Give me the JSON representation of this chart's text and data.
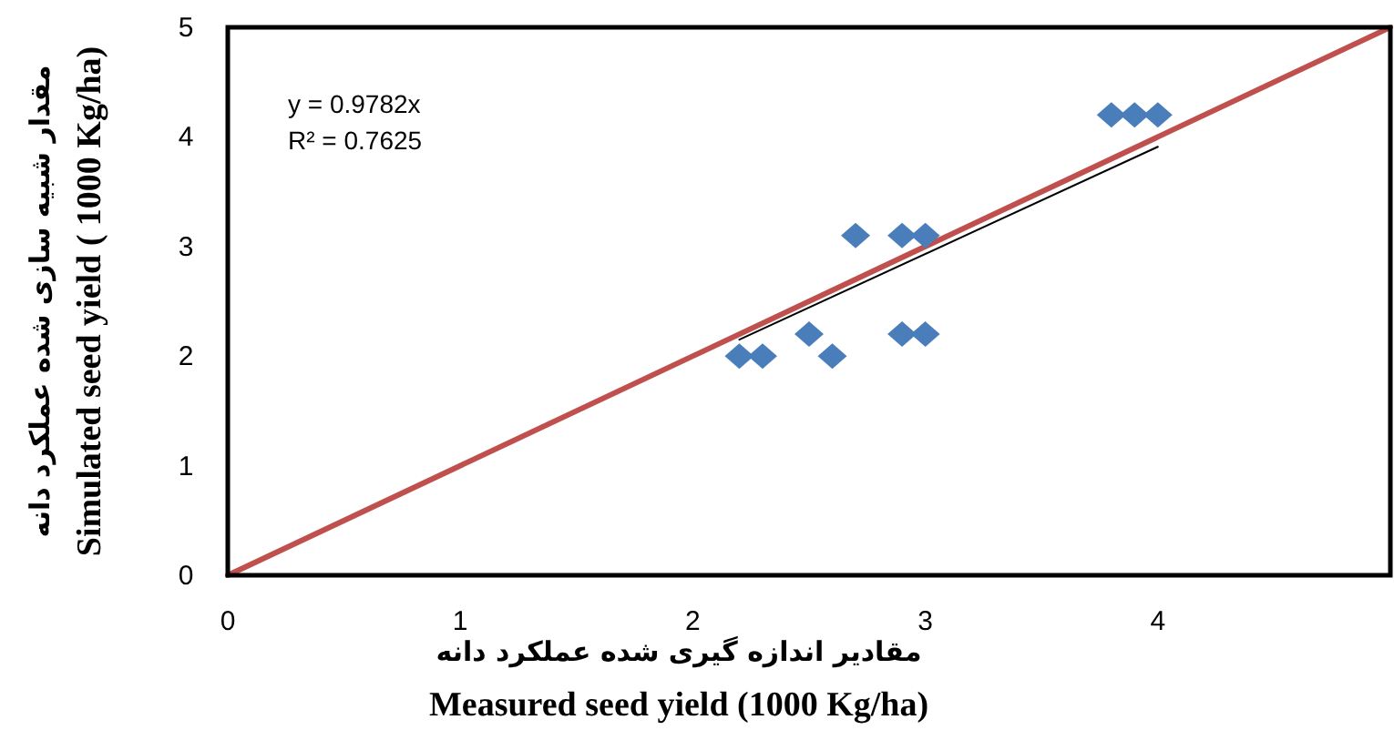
{
  "chart_data": {
    "type": "scatter",
    "xlabel": "مقادیر اندازه گیری شده عملکرد دانه\nMeasured seed yield  (1000 Kg/ha)",
    "ylabel": "مقدار شبیه سازی  شده عملکرد دانه\nSimulated seed yield ( 1000 Kg/ha)",
    "xlim": [
      0,
      5
    ],
    "ylim": [
      0,
      5
    ],
    "xticks": [
      0,
      1,
      2,
      3,
      4
    ],
    "yticks": [
      0,
      1,
      2,
      3,
      4,
      5
    ],
    "grid": false,
    "marker": "diamond",
    "series": [
      {
        "type": "line",
        "color": "#c0504d",
        "x": [
          0,
          5
        ],
        "values": [
          0,
          5
        ],
        "line_style": "solid",
        "marker": "none"
      },
      {
        "type": "line",
        "color": "#000000",
        "x": [
          2.2,
          4.0
        ],
        "values": [
          2.15,
          3.91
        ],
        "line_style": "solid",
        "marker": "none"
      },
      {
        "color": "#4a7ebb",
        "x": [
          2.2,
          2.3,
          2.5,
          2.6,
          2.7,
          2.9,
          3.0,
          2.9,
          3.0,
          3.8,
          3.9,
          4.0
        ],
        "values": [
          2.0,
          2.0,
          2.2,
          2.0,
          3.1,
          3.1,
          3.1,
          2.2,
          2.2,
          4.2,
          4.2,
          4.2
        ]
      }
    ],
    "annotations": [
      "y = 0.9782x",
      "R² = 0.7625"
    ]
  }
}
